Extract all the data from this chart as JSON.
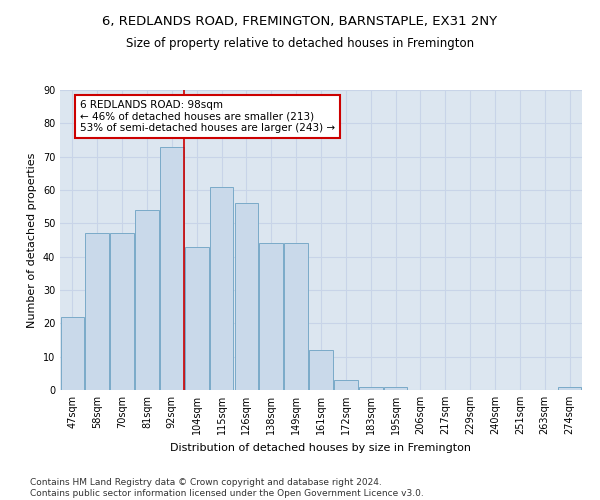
{
  "title1": "6, REDLANDS ROAD, FREMINGTON, BARNSTAPLE, EX31 2NY",
  "title2": "Size of property relative to detached houses in Fremington",
  "xlabel": "Distribution of detached houses by size in Fremington",
  "ylabel": "Number of detached properties",
  "bar_labels": [
    "47sqm",
    "58sqm",
    "70sqm",
    "81sqm",
    "92sqm",
    "104sqm",
    "115sqm",
    "126sqm",
    "138sqm",
    "149sqm",
    "161sqm",
    "172sqm",
    "183sqm",
    "195sqm",
    "206sqm",
    "217sqm",
    "229sqm",
    "240sqm",
    "251sqm",
    "263sqm",
    "274sqm"
  ],
  "bar_heights": [
    22,
    47,
    47,
    54,
    73,
    43,
    61,
    56,
    44,
    44,
    12,
    3,
    1,
    1,
    0,
    0,
    0,
    0,
    0,
    0,
    1
  ],
  "bar_color": "#c9d9ea",
  "bar_edge_color": "#7aaac8",
  "vline_x_index": 4.5,
  "vline_color": "#cc0000",
  "annotation_text": "6 REDLANDS ROAD: 98sqm\n← 46% of detached houses are smaller (213)\n53% of semi-detached houses are larger (243) →",
  "annotation_box_color": "white",
  "annotation_box_edge_color": "#cc0000",
  "ylim": [
    0,
    90
  ],
  "yticks": [
    0,
    10,
    20,
    30,
    40,
    50,
    60,
    70,
    80,
    90
  ],
  "grid_color": "#c8d4e8",
  "bg_color": "#dce6f0",
  "footer": "Contains HM Land Registry data © Crown copyright and database right 2024.\nContains public sector information licensed under the Open Government Licence v3.0.",
  "title1_fontsize": 9.5,
  "title2_fontsize": 8.5,
  "xlabel_fontsize": 8,
  "ylabel_fontsize": 8,
  "annotation_fontsize": 7.5,
  "footer_fontsize": 6.5,
  "tick_fontsize": 7
}
